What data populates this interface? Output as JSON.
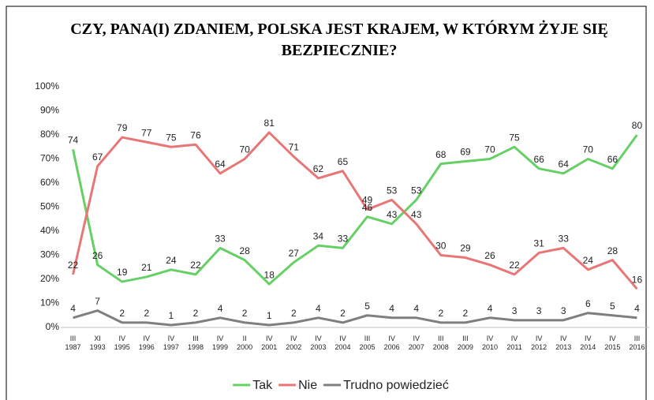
{
  "chart_data": {
    "type": "line",
    "title": "CZY, PANA(I) ZDANIEM, POLSKA JEST KRAJEM, W KTÓRYM ŻYJE SIĘ BEZPIECZNIE?",
    "categories": [
      [
        "III",
        "1987"
      ],
      [
        "XI",
        "1993"
      ],
      [
        "IV",
        "1995"
      ],
      [
        "IV",
        "1996"
      ],
      [
        "IV",
        "1997"
      ],
      [
        "III",
        "1998"
      ],
      [
        "IV",
        "1999"
      ],
      [
        "II",
        "2000"
      ],
      [
        "IV",
        "2001"
      ],
      [
        "IV",
        "2002"
      ],
      [
        "IV",
        "2003"
      ],
      [
        "IV",
        "2004"
      ],
      [
        "III",
        "2005"
      ],
      [
        "IV",
        "2006"
      ],
      [
        "IV",
        "2007"
      ],
      [
        "III",
        "2008"
      ],
      [
        "III",
        "2009"
      ],
      [
        "IV",
        "2010"
      ],
      [
        "IV",
        "2011"
      ],
      [
        "IV",
        "2012"
      ],
      [
        "IV",
        "2013"
      ],
      [
        "IV",
        "2014"
      ],
      [
        "IV",
        "2015"
      ],
      [
        "III",
        "2016"
      ]
    ],
    "series": [
      {
        "name": "Tak",
        "color": "#66d066",
        "values": [
          74,
          26,
          19,
          21,
          24,
          22,
          33,
          28,
          18,
          27,
          34,
          33,
          46,
          43,
          53,
          68,
          69,
          70,
          75,
          66,
          64,
          70,
          66,
          80
        ]
      },
      {
        "name": "Nie",
        "color": "#e87676",
        "values": [
          22,
          67,
          79,
          77,
          75,
          76,
          64,
          70,
          81,
          71,
          62,
          65,
          49,
          53,
          43,
          30,
          29,
          26,
          22,
          31,
          33,
          24,
          28,
          16
        ]
      },
      {
        "name": "Trudno powiedzieć",
        "color": "#7f7f7f",
        "values": [
          4,
          7,
          2,
          2,
          1,
          2,
          4,
          2,
          1,
          2,
          4,
          2,
          5,
          4,
          4,
          2,
          2,
          4,
          3,
          3,
          3,
          6,
          5,
          4
        ]
      }
    ],
    "ylim": [
      0,
      100
    ],
    "yticks": [
      {
        "value": 0,
        "label": "0%"
      },
      {
        "value": 10,
        "label": "10%"
      },
      {
        "value": 20,
        "label": "20%"
      },
      {
        "value": 30,
        "label": "30%"
      },
      {
        "value": 40,
        "label": "40%"
      },
      {
        "value": 50,
        "label": "50%"
      },
      {
        "value": 60,
        "label": "60%"
      },
      {
        "value": 70,
        "label": "70%"
      },
      {
        "value": 80,
        "label": "80%"
      },
      {
        "value": 90,
        "label": "90%"
      },
      {
        "value": 100,
        "label": "100%"
      }
    ],
    "grid": false,
    "legend": "bottom"
  }
}
